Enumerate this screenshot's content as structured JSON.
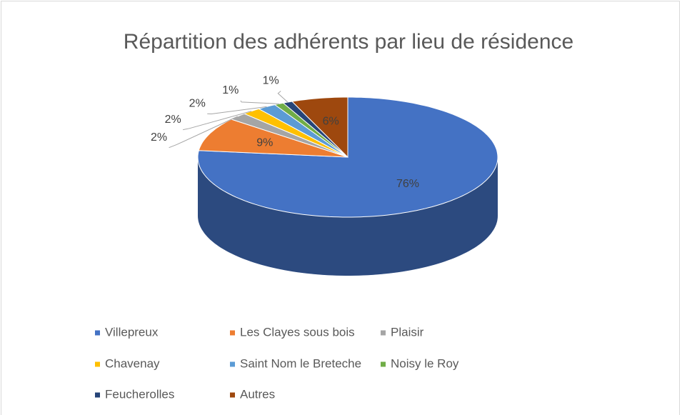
{
  "chart_data": {
    "type": "pie",
    "title": "Répartition des adhérents par lieu de résidence",
    "categories": [
      "Villepreux",
      "Les Clayes sous bois",
      "Plaisir",
      "Chavenay",
      "Saint Nom le Breteche",
      "Noisy le Roy",
      "Feucherolles",
      "Autres"
    ],
    "values": [
      76,
      9,
      2,
      2,
      2,
      1,
      1,
      6
    ],
    "value_labels": [
      "76%",
      "9%",
      "2%",
      "2%",
      "2%",
      "1%",
      "1%",
      "6%"
    ],
    "colors": [
      "#4472c4",
      "#ed7d31",
      "#a5a5a5",
      "#ffc000",
      "#5b9bd5",
      "#70ad47",
      "#264478",
      "#9e480e"
    ],
    "legend": "bottom"
  }
}
